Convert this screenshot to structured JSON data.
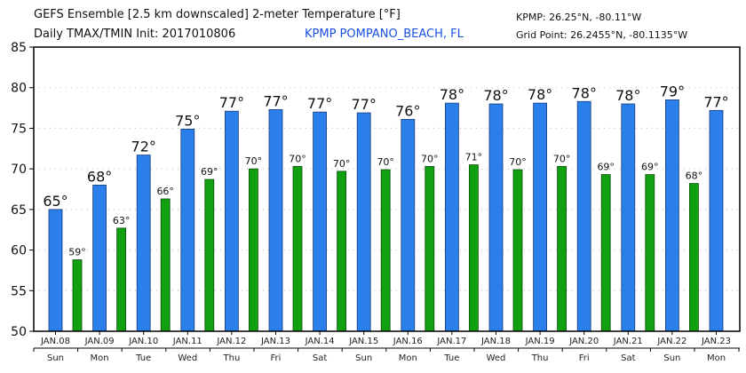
{
  "header": {
    "title_line1": "GEFS Ensemble [2.5 km downscaled] 2-meter Temperature [°F]",
    "title_line2": "Daily TMAX/TMIN Init: 2017010806",
    "station_name": "KPMP POMPANO_BEACH, FL",
    "station_coords": "KPMP: 26.25°N, -80.11°W",
    "grid_point": "Grid Point: 26.2455°N, -80.1135°W"
  },
  "colors": {
    "tmax": "#2a7fea",
    "tmin": "#10a010",
    "station_text": "#1a4fe0"
  },
  "chart_data": {
    "type": "bar",
    "title": "GEFS Ensemble [2.5 km downscaled] 2-meter Temperature [°F]",
    "xlabel": "",
    "ylabel": "",
    "ylim": [
      50,
      85
    ],
    "yticks": [
      "50",
      "55",
      "60",
      "65",
      "70",
      "75",
      "80",
      "85"
    ],
    "grid": true,
    "categories": [
      "JAN.08",
      "JAN.09",
      "JAN.10",
      "JAN.11",
      "JAN.12",
      "JAN.13",
      "JAN.14",
      "JAN.15",
      "JAN.16",
      "JAN.17",
      "JAN.18",
      "JAN.19",
      "JAN.20",
      "JAN.21",
      "JAN.22",
      "JAN.23"
    ],
    "weekdays": [
      "Sun",
      "Mon",
      "Tue",
      "Wed",
      "Thu",
      "Fri",
      "Sat",
      "Sun",
      "Mon",
      "Tue",
      "Wed",
      "Thu",
      "Fri",
      "Sat",
      "Sun",
      "Mon"
    ],
    "series": [
      {
        "name": "TMAX",
        "values": [
          65.0,
          68.0,
          71.7,
          74.9,
          77.1,
          77.3,
          77.0,
          76.9,
          76.1,
          78.1,
          78.0,
          78.1,
          78.3,
          78.0,
          78.5,
          77.2
        ],
        "labels": [
          "65°",
          "68°",
          "72°",
          "75°",
          "77°",
          "77°",
          "77°",
          "77°",
          "76°",
          "78°",
          "78°",
          "78°",
          "78°",
          "78°",
          "79°",
          "77°"
        ]
      },
      {
        "name": "TMIN",
        "values": [
          58.8,
          62.7,
          66.3,
          68.7,
          70.0,
          70.3,
          69.7,
          69.9,
          70.3,
          70.5,
          69.9,
          70.3,
          69.3,
          69.3,
          68.2,
          null
        ],
        "labels": [
          "59°",
          "63°",
          "66°",
          "69°",
          "70°",
          "70°",
          "70°",
          "70°",
          "70°",
          "71°",
          "70°",
          "70°",
          "69°",
          "69°",
          "68°",
          ""
        ]
      }
    ]
  }
}
